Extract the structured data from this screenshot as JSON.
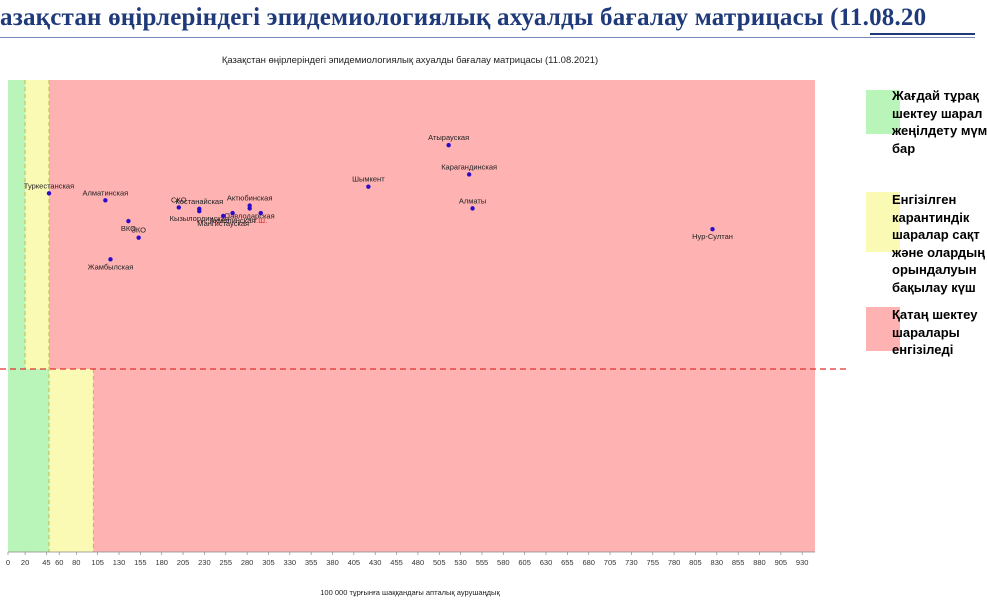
{
  "page": {
    "title": "азақстан өңірлеріндегі эпидемиологиялық ахуалды бағалау матрицасы  (11.08.20"
  },
  "legend": [
    {
      "color": "#b9f5b9",
      "text": "Жағдай тұрақ\nшектеу шарал\nжеңілдету мүм\nбар"
    },
    {
      "color": "#fafab4",
      "text": "Енгізілген\nкарантиндік\nшаралар сақт\nжәне олардың\nорындалуын\nбақылау күш"
    },
    {
      "color": "#ffb2b2",
      "text": "Қатаң шектеу\nшаралары\nенгізіледі"
    }
  ],
  "chart_data": {
    "type": "scatter",
    "title": "Қазақстан өңірлеріндегі эпидемиологиялық ахуалды бағалау матрицасы  (11.08.2021)",
    "xlabel": "100 000 тұрғынға шаққандағы апталық аурушаңдық",
    "ylabel": "",
    "xlim": [
      0,
      945
    ],
    "ylim": [
      0,
      1
    ],
    "x_ticks": [
      0,
      20,
      45,
      60,
      80,
      105,
      130,
      155,
      180,
      205,
      230,
      255,
      280,
      305,
      330,
      355,
      380,
      405,
      430,
      455,
      480,
      505,
      530,
      555,
      580,
      605,
      630,
      655,
      680,
      705,
      730,
      755,
      780,
      805,
      830,
      855,
      880,
      905,
      930
    ],
    "zones": [
      {
        "name": "green",
        "color": "#b9f5b9"
      },
      {
        "name": "yellow",
        "color": "#fafab4"
      },
      {
        "name": "red",
        "color": "#ffb2b2"
      }
    ],
    "threshold_line_color": "#e03030",
    "point_color": "#2a0cc8",
    "points": [
      {
        "label": "Туркестанская",
        "x": 48,
        "y": 0.76
      },
      {
        "label": "Алматинская",
        "x": 114,
        "y": 0.745
      },
      {
        "label": "СКО",
        "x": 200,
        "y": 0.73
      },
      {
        "label": "Костанайская",
        "x": 224,
        "y": 0.727
      },
      {
        "label": "Кызылординская",
        "x": 224,
        "y": 0.722
      },
      {
        "label": "ВКО",
        "x": 141,
        "y": 0.701
      },
      {
        "label": "Актюбинская",
        "x": 283,
        "y": 0.734
      },
      {
        "label": "Павлодарская",
        "x": 283,
        "y": 0.728
      },
      {
        "label": "Акмолинская",
        "x": 263,
        "y": 0.718
      },
      {
        "label": "Мангистауская",
        "x": 252,
        "y": 0.712
      },
      {
        "label": "г.Ш.",
        "x": 296,
        "y": 0.718
      },
      {
        "label": "ЗКО",
        "x": 153,
        "y": 0.666
      },
      {
        "label": "Жамбылская",
        "x": 120,
        "y": 0.62
      },
      {
        "label": "Атырауская",
        "x": 516,
        "y": 0.862
      },
      {
        "label": "Карагандинская",
        "x": 540,
        "y": 0.8
      },
      {
        "label": "Шымкент",
        "x": 422,
        "y": 0.774
      },
      {
        "label": "Алматы",
        "x": 544,
        "y": 0.728
      },
      {
        "label": "Нур-Султан",
        "x": 825,
        "y": 0.684
      }
    ]
  }
}
